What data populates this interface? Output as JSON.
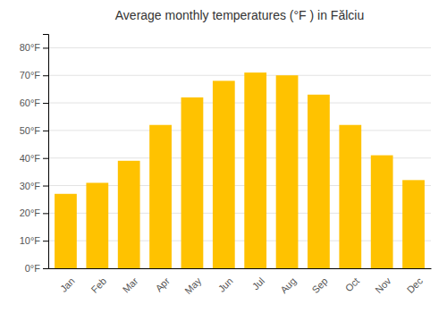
{
  "chart_data": {
    "type": "bar",
    "title": "Average monthly temperatures (°F ) in Fălciu",
    "categories": [
      "Jan",
      "Feb",
      "Mar",
      "Apr",
      "May",
      "Jun",
      "Jul",
      "Aug",
      "Sep",
      "Oct",
      "Nov",
      "Dec"
    ],
    "values": [
      27,
      31,
      39,
      52,
      62,
      68,
      71,
      70,
      63,
      52,
      41,
      32
    ],
    "color": "#FFC200",
    "ylim": [
      0,
      85
    ],
    "yticks": [
      {
        "value": 0,
        "label": "0°F"
      },
      {
        "value": 10,
        "label": "10°F"
      },
      {
        "value": 20,
        "label": "20°F"
      },
      {
        "value": 30,
        "label": "30°F"
      },
      {
        "value": 40,
        "label": "40°F"
      },
      {
        "value": 50,
        "label": "50°F"
      },
      {
        "value": 60,
        "label": "60°F"
      },
      {
        "value": 70,
        "label": "70°F"
      },
      {
        "value": 80,
        "label": "80°F"
      }
    ],
    "grid": true
  }
}
